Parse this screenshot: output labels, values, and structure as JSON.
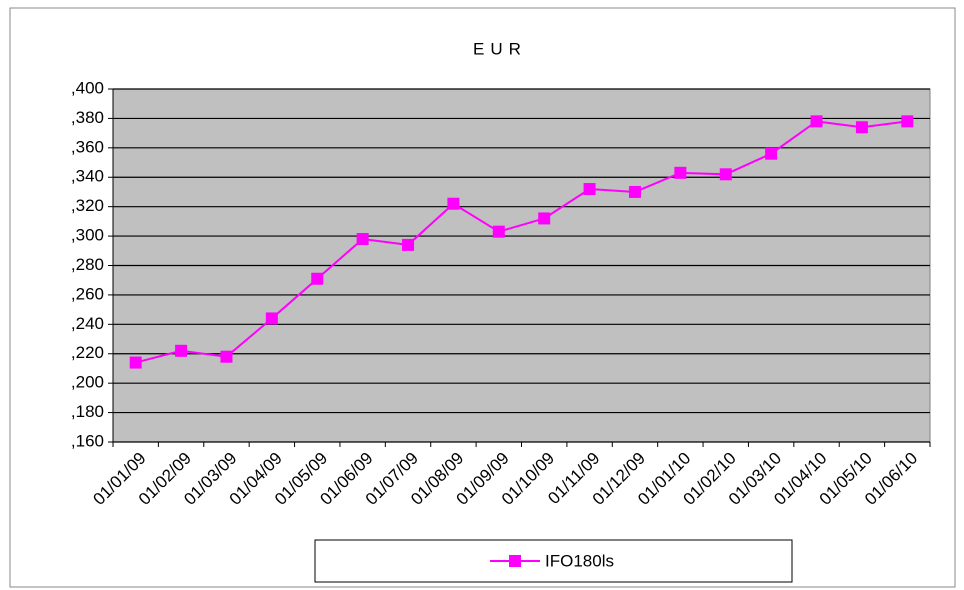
{
  "chart_data": {
    "type": "line",
    "title": "EUR",
    "categories": [
      "01/01/09",
      "01/02/09",
      "01/03/09",
      "01/04/09",
      "01/05/09",
      "01/06/09",
      "01/07/09",
      "01/08/09",
      "01/09/09",
      "01/10/09",
      "01/11/09",
      "01/12/09",
      "01/01/10",
      "01/02/10",
      "01/03/10",
      "01/04/10",
      "01/05/10",
      "01/06/10"
    ],
    "series": [
      {
        "name": "IFO180ls",
        "color": "#ff00ff",
        "values": [
          0.214,
          0.222,
          0.218,
          0.244,
          0.271,
          0.298,
          0.294,
          0.322,
          0.303,
          0.312,
          0.332,
          0.33,
          0.343,
          0.342,
          0.356,
          0.378,
          0.374,
          0.378
        ]
      }
    ],
    "ylim": [
      0.16,
      0.4
    ],
    "yticks": [
      {
        "value": 0.16,
        "label": ",160"
      },
      {
        "value": 0.18,
        "label": ",180"
      },
      {
        "value": 0.2,
        "label": ",200"
      },
      {
        "value": 0.22,
        "label": ",220"
      },
      {
        "value": 0.24,
        "label": ",240"
      },
      {
        "value": 0.26,
        "label": ",260"
      },
      {
        "value": 0.28,
        "label": ",280"
      },
      {
        "value": 0.3,
        "label": ",300"
      },
      {
        "value": 0.32,
        "label": ",320"
      },
      {
        "value": 0.34,
        "label": ",340"
      },
      {
        "value": 0.36,
        "label": ",360"
      },
      {
        "value": 0.38,
        "label": ",380"
      },
      {
        "value": 0.4,
        "label": ",400"
      }
    ],
    "grid": true,
    "legend": "bottom"
  }
}
